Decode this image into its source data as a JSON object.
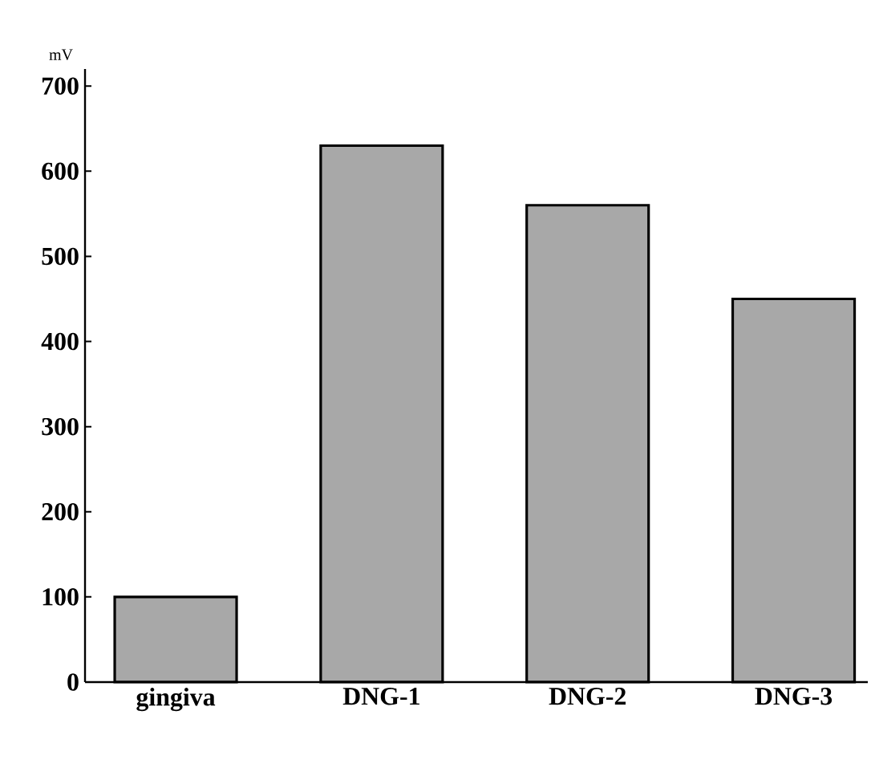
{
  "chart_data": {
    "type": "bar",
    "ylabel": "mV",
    "categories": [
      "gingiva",
      "DNG-1",
      "DNG-2",
      "DNG-3"
    ],
    "values": [
      100,
      630,
      560,
      450
    ],
    "color": "#a8a8a8",
    "ylim": [
      0,
      720
    ],
    "yticks": [
      0,
      100,
      200,
      300,
      400,
      500,
      600,
      700
    ],
    "grid": false
  }
}
